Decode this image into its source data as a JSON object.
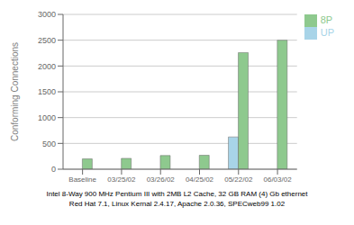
{
  "chart_data": {
    "type": "bar",
    "categories": [
      "Baseline",
      "03/25/02",
      "03/26/02",
      "04/25/02",
      "05/22/02",
      "06/03/02"
    ],
    "series": [
      {
        "name": "UP",
        "color": "#a8d4e8",
        "values": [
          0,
          0,
          0,
          0,
          625,
          0
        ]
      },
      {
        "name": "8P",
        "color": "#8ec98e",
        "values": [
          200,
          210,
          265,
          270,
          2260,
          2500
        ]
      }
    ],
    "ylabel": "Conforming Connections",
    "ylim": [
      0,
      3000
    ],
    "yticks": [
      0,
      500,
      1000,
      1500,
      2000,
      2500,
      3000
    ],
    "grid": true,
    "legend": "right",
    "annotations": [
      "Intel 8-Way 900 MHz Pentium III with 2MB L2 Cache, 32 GB RAM (4) Gb ethernet",
      "Red Hat 7.1, Linux Kernal 2.4.17, Apache 2.0.36, SPECweb99 1.02"
    ]
  }
}
